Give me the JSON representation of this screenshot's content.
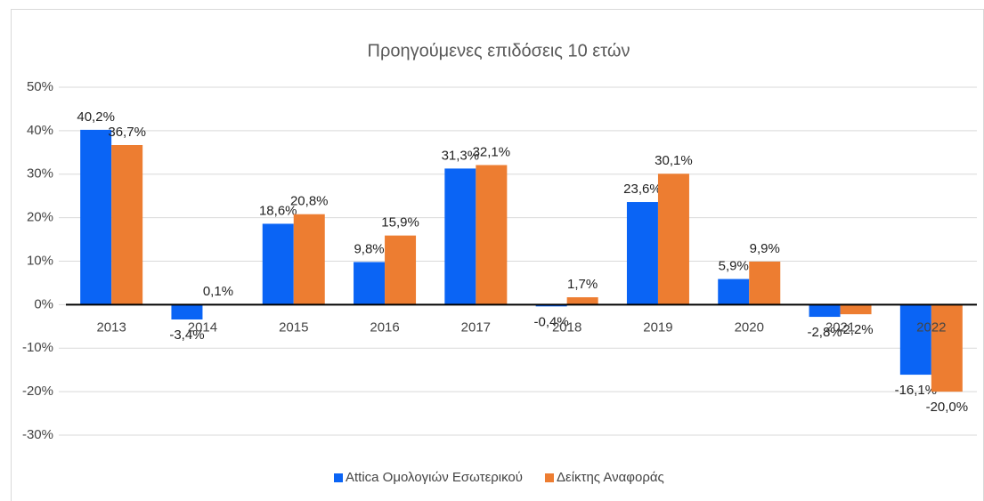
{
  "chart_data": {
    "type": "bar",
    "title": "Προηγούμενες επιδόσεις 10 ετών",
    "categories": [
      "2013",
      "2014",
      "2015",
      "2016",
      "2017",
      "2018",
      "2019",
      "2020",
      "2021",
      "2022"
    ],
    "series": [
      {
        "name": "Attica Ομολογιών Εσωτερικού",
        "color": "#0a64f5",
        "values": [
          40.2,
          -3.4,
          18.6,
          9.8,
          31.3,
          -0.4,
          23.6,
          5.9,
          -2.8,
          -16.1
        ],
        "value_labels": [
          "40,2%",
          "-3,4%",
          "18,6%",
          "9,8%",
          "31,3%",
          "-0,4%",
          "23,6%",
          "5,9%",
          "-2,8%",
          "-16,1%"
        ]
      },
      {
        "name": "Δείκτης Αναφοράς",
        "color": "#ed7d31",
        "values": [
          36.7,
          0.1,
          20.8,
          15.9,
          32.1,
          1.7,
          30.1,
          9.9,
          -2.2,
          -20.0
        ],
        "value_labels": [
          "36,7%",
          "0,1%",
          "20,8%",
          "15,9%",
          "32,1%",
          "1,7%",
          "30,1%",
          "9,9%",
          "-2,2%",
          "-20,0%"
        ]
      }
    ],
    "ylim": [
      -30,
      50
    ],
    "yticks": [
      {
        "value": -30,
        "label": "-30%"
      },
      {
        "value": -20,
        "label": "-20%"
      },
      {
        "value": -10,
        "label": "-10%"
      },
      {
        "value": 0,
        "label": "0%"
      },
      {
        "value": 10,
        "label": "10%"
      },
      {
        "value": 20,
        "label": "20%"
      },
      {
        "value": 30,
        "label": "30%"
      },
      {
        "value": 40,
        "label": "40%"
      },
      {
        "value": 50,
        "label": "50%"
      }
    ],
    "grid": true,
    "legend": "bottom"
  }
}
